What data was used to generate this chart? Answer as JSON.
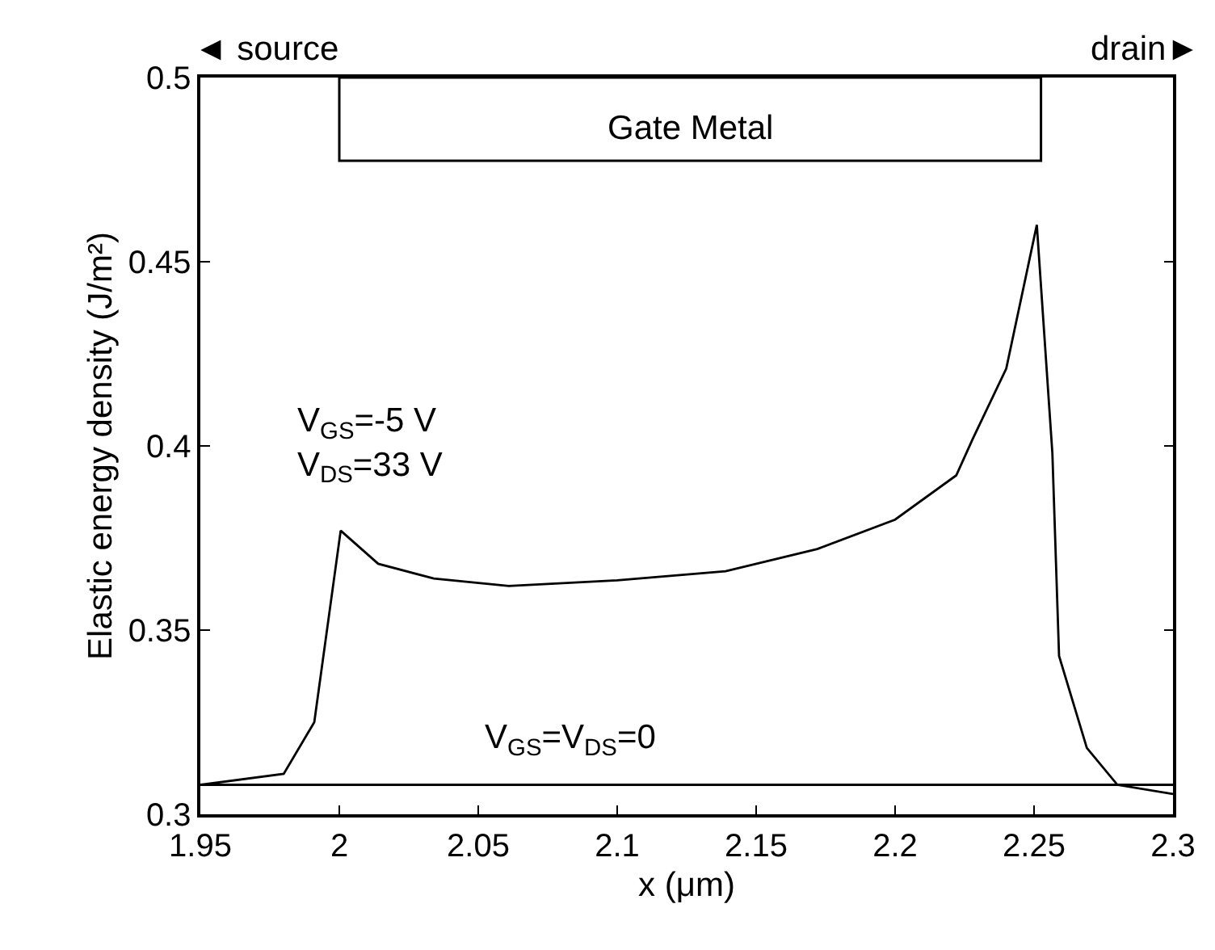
{
  "chart_data": {
    "type": "line",
    "xlabel": "x (μm)",
    "ylabel": "Elastic energy density (J/m²)",
    "xlim": [
      1.95,
      2.3
    ],
    "xticks": [
      1.95,
      2,
      2.05,
      2.1,
      2.15,
      2.2,
      2.25,
      2.3
    ],
    "ylim": [
      0.3,
      0.5
    ],
    "yticks": [
      0.3,
      0.35,
      0.4,
      0.45,
      0.5
    ],
    "marker": "none",
    "line_style": "solid",
    "series": [
      {
        "color": "#000000",
        "x": [
          1.95,
          1.98,
          1.991,
          2.0005,
          2.014,
          2.034,
          2.061,
          2.1,
          2.139,
          2.172,
          2.2,
          2.222,
          2.228,
          2.24,
          2.251,
          2.2566,
          2.259,
          2.269,
          2.28,
          2.3
        ],
        "values": [
          0.308,
          0.311,
          0.325,
          0.377,
          0.368,
          0.364,
          0.362,
          0.3635,
          0.366,
          0.372,
          0.38,
          0.392,
          0.402,
          0.421,
          0.46,
          0.398,
          0.343,
          0.318,
          0.308,
          0.3055
        ]
      },
      {
        "color": "#000000",
        "x": [
          1.95,
          2.3
        ],
        "values": [
          0.308,
          0.308
        ]
      }
    ],
    "bands": [
      {
        "axis": "x",
        "from": 2.0,
        "to": 2.2525,
        "label": "Gate Metal",
        "color": "#ffffff"
      }
    ],
    "annotations": [
      "◄ source",
      "V$_{GS}$=-5 V\nV$_{DS}$=33 V",
      "V$_{GS}$=V$_{DS}$=0",
      "drain►"
    ]
  }
}
